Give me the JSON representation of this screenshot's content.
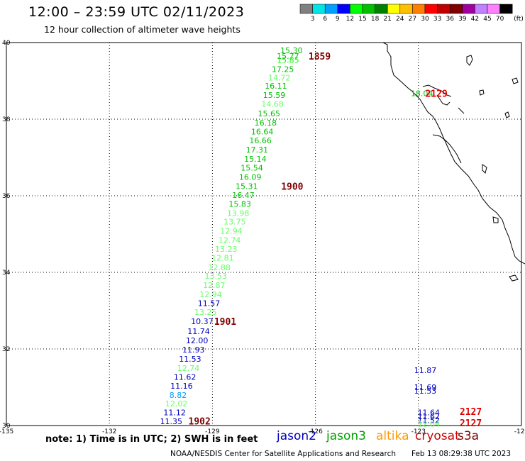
{
  "header": {
    "title": "12:00 – 23:59 UTC 02/11/2023",
    "subtitle": "12 hour collection of altimeter wave heights"
  },
  "colorbar": {
    "levels": [
      "3",
      "6",
      "9",
      "12",
      "15",
      "18",
      "21",
      "24",
      "27",
      "30",
      "33",
      "36",
      "39",
      "42",
      "45",
      "70"
    ],
    "colors": [
      "#808080",
      "#00e5e5",
      "#00a0ff",
      "#0000ff",
      "#00ff00",
      "#00c000",
      "#008000",
      "#ffff00",
      "#ffc000",
      "#ff8000",
      "#ff0000",
      "#c00000",
      "#800000",
      "#a000a0",
      "#c080ff",
      "#ff80ff",
      "#000000"
    ],
    "unit": "(ft)"
  },
  "footer": {
    "note": "note:  1) Time is in UTC; 2) SWH is in feet",
    "credit": "NOAA/NESDIS Center for Satellite Applications and Research",
    "timestamp": "Feb 13 08:29:38 UTC 2023"
  },
  "satellites": [
    {
      "name": "jason2",
      "color": "#0000c0"
    },
    {
      "name": "jason3",
      "color": "#00a000"
    },
    {
      "name": "altika",
      "color": "#ff9900"
    },
    {
      "name": "cryosat",
      "color": "#cc0000"
    },
    {
      "name": "s3a",
      "color": "#800000"
    }
  ],
  "chart_data": {
    "type": "scatter",
    "title": "12:00 – 23:59 UTC 02/11/2023",
    "subtitle": "12 hour collection of altimeter wave heights",
    "xlabel": "",
    "ylabel": "",
    "xlim": [
      -135,
      -120
    ],
    "ylim": [
      30,
      40
    ],
    "xticks": [
      -135,
      -132,
      -129,
      -126,
      -123,
      -120
    ],
    "xtick_labels": [
      "-135",
      "-132",
      "-129",
      "-126",
      "-123",
      "-120"
    ],
    "yticks": [
      30,
      32,
      34,
      36,
      38,
      40
    ],
    "grid": true,
    "wave_heights": [
      {
        "lon": -126.7,
        "lat": 39.8,
        "swh": "15.30",
        "color": "#00c000"
      },
      {
        "lon": -126.8,
        "lat": 39.65,
        "swh": "15.77",
        "color": "#00c000"
      },
      {
        "lon": -126.8,
        "lat": 39.55,
        "swh": "15.85",
        "color": "#00ff00"
      },
      {
        "lon": -126.95,
        "lat": 39.31,
        "swh": "17.25",
        "color": "#00c000"
      },
      {
        "lon": -127.05,
        "lat": 39.08,
        "swh": "14.72",
        "color": "#66ff66"
      },
      {
        "lon": -127.15,
        "lat": 38.87,
        "swh": "16.11",
        "color": "#00c000"
      },
      {
        "lon": -127.2,
        "lat": 38.63,
        "swh": "15.59",
        "color": "#00c000"
      },
      {
        "lon": -127.25,
        "lat": 38.4,
        "swh": "14.68",
        "color": "#66ff66"
      },
      {
        "lon": -127.35,
        "lat": 38.15,
        "swh": "15.65",
        "color": "#00c000"
      },
      {
        "lon": -127.45,
        "lat": 37.91,
        "swh": "16.18",
        "color": "#00c000"
      },
      {
        "lon": -127.55,
        "lat": 37.68,
        "swh": "16.64",
        "color": "#00c000"
      },
      {
        "lon": -127.6,
        "lat": 37.44,
        "swh": "16.66",
        "color": "#00c000"
      },
      {
        "lon": -127.7,
        "lat": 37.2,
        "swh": "17.31",
        "color": "#00c000"
      },
      {
        "lon": -127.75,
        "lat": 36.96,
        "swh": "15.14",
        "color": "#00c000"
      },
      {
        "lon": -127.85,
        "lat": 36.73,
        "swh": "15.54",
        "color": "#00c000"
      },
      {
        "lon": -127.9,
        "lat": 36.49,
        "swh": "16.09",
        "color": "#00c000"
      },
      {
        "lon": -128.0,
        "lat": 36.25,
        "swh": "15.31",
        "color": "#00c000"
      },
      {
        "lon": -128.1,
        "lat": 36.02,
        "swh": "16.47",
        "color": "#00c000"
      },
      {
        "lon": -128.2,
        "lat": 35.79,
        "swh": "15.83",
        "color": "#00c000"
      },
      {
        "lon": -128.25,
        "lat": 35.55,
        "swh": "13.98",
        "color": "#66ff66"
      },
      {
        "lon": -128.35,
        "lat": 35.32,
        "swh": "13.75",
        "color": "#66ff66"
      },
      {
        "lon": -128.45,
        "lat": 35.08,
        "swh": "12.94",
        "color": "#66ff66"
      },
      {
        "lon": -128.5,
        "lat": 34.84,
        "swh": "12.74",
        "color": "#66ff66"
      },
      {
        "lon": -128.6,
        "lat": 34.61,
        "swh": "13.23",
        "color": "#66ff66"
      },
      {
        "lon": -128.7,
        "lat": 34.38,
        "swh": "12.81",
        "color": "#66ff66"
      },
      {
        "lon": -128.8,
        "lat": 34.13,
        "swh": "12.88",
        "color": "#66ff66"
      },
      {
        "lon": -128.9,
        "lat": 33.91,
        "swh": "13.53",
        "color": "#66ff66"
      },
      {
        "lon": -128.95,
        "lat": 33.67,
        "swh": "12.87",
        "color": "#66ff66"
      },
      {
        "lon": -129.05,
        "lat": 33.43,
        "swh": "12.94",
        "color": "#66ff66"
      },
      {
        "lon": -129.1,
        "lat": 33.19,
        "swh": "11.57",
        "color": "#0000c0"
      },
      {
        "lon": -129.2,
        "lat": 32.96,
        "swh": "13.25",
        "color": "#66ff66"
      },
      {
        "lon": -129.3,
        "lat": 32.72,
        "swh": "10.37",
        "color": "#0000c0"
      },
      {
        "lon": -129.4,
        "lat": 32.46,
        "swh": "11.74",
        "color": "#0000c0"
      },
      {
        "lon": -129.45,
        "lat": 32.22,
        "swh": "12.00",
        "color": "#0000c0"
      },
      {
        "lon": -129.55,
        "lat": 31.98,
        "swh": "11.93",
        "color": "#0000c0"
      },
      {
        "lon": -129.65,
        "lat": 31.74,
        "swh": "11.53",
        "color": "#0000c0"
      },
      {
        "lon": -129.7,
        "lat": 31.5,
        "swh": "12.74",
        "color": "#66ff66"
      },
      {
        "lon": -129.8,
        "lat": 31.27,
        "swh": "11.62",
        "color": "#0000c0"
      },
      {
        "lon": -129.9,
        "lat": 31.04,
        "swh": "11.16",
        "color": "#0000c0"
      },
      {
        "lon": -130.0,
        "lat": 30.8,
        "swh": "8.82",
        "color": "#00a0ff"
      },
      {
        "lon": -130.05,
        "lat": 30.57,
        "swh": "12.02",
        "color": "#66ff66"
      },
      {
        "lon": -130.1,
        "lat": 30.34,
        "swh": "11.12",
        "color": "#0000c0"
      },
      {
        "lon": -130.2,
        "lat": 30.11,
        "swh": "11.35",
        "color": "#0000c0"
      },
      {
        "lon": -122.9,
        "lat": 38.68,
        "swh": "18.04",
        "color": "#00c000"
      },
      {
        "lon": -122.8,
        "lat": 31.44,
        "swh": "11.87",
        "color": "#0000c0"
      },
      {
        "lon": -122.8,
        "lat": 31.0,
        "swh": "11.69",
        "color": "#0000c0"
      },
      {
        "lon": -122.8,
        "lat": 30.91,
        "swh": "11.53",
        "color": "#0000c0"
      },
      {
        "lon": -122.7,
        "lat": 30.34,
        "swh": "11.64",
        "color": "#0000c0"
      },
      {
        "lon": -122.7,
        "lat": 30.24,
        "swh": "11.62",
        "color": "#0000c0"
      },
      {
        "lon": -122.7,
        "lat": 30.14,
        "swh": "11.52",
        "color": "#0000c0"
      },
      {
        "lon": -122.7,
        "lat": 30.05,
        "swh": "12.04",
        "color": "#66ff66"
      }
    ],
    "pass_labels": [
      {
        "lon": -126.2,
        "lat": 39.65,
        "text": "1859",
        "color": "#800000"
      },
      {
        "lon": -127.0,
        "lat": 36.25,
        "text": "1900",
        "color": "#800000"
      },
      {
        "lon": -128.95,
        "lat": 32.72,
        "text": "1901",
        "color": "#800000"
      },
      {
        "lon": -129.7,
        "lat": 30.12,
        "text": "1902",
        "color": "#800000"
      },
      {
        "lon": -122.8,
        "lat": 38.68,
        "text": "2129",
        "color": "#dd0000"
      },
      {
        "lon": -121.8,
        "lat": 30.37,
        "text": "2127",
        "color": "#dd0000"
      },
      {
        "lon": -121.8,
        "lat": 30.07,
        "text": "2127",
        "color": "#dd0000"
      }
    ]
  }
}
